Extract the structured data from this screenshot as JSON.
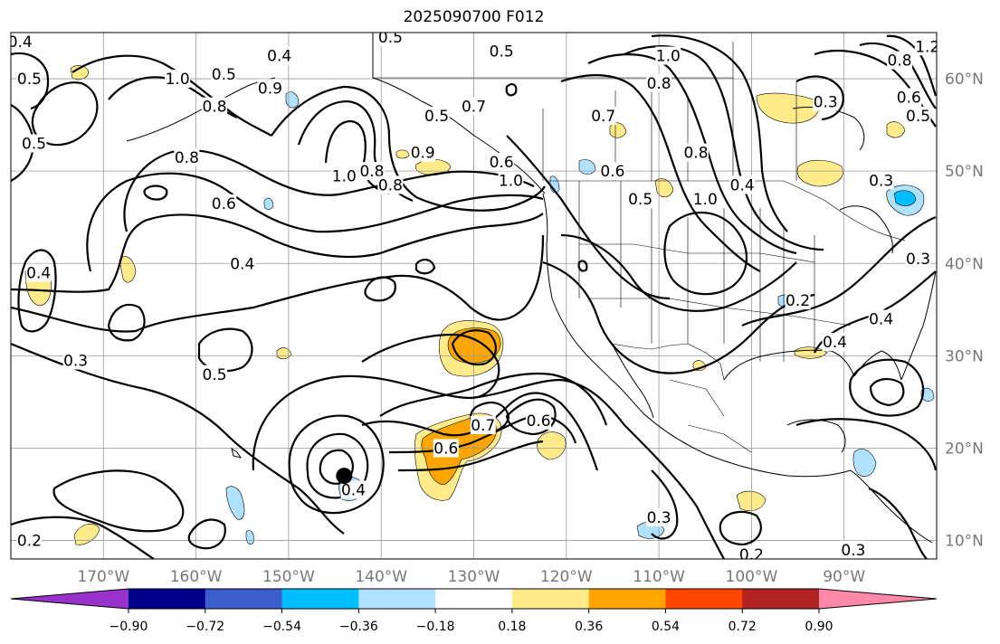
{
  "title": "2025090700 F012",
  "map": {
    "lon_range": [
      -180,
      -80
    ],
    "lat_range": [
      8,
      65
    ],
    "lon_ticks": [
      {
        "lon": -170,
        "label": "170°W"
      },
      {
        "lon": -160,
        "label": "160°W"
      },
      {
        "lon": -150,
        "label": "150°W"
      },
      {
        "lon": -140,
        "label": "140°W"
      },
      {
        "lon": -130,
        "label": "130°W"
      },
      {
        "lon": -120,
        "label": "120°W"
      },
      {
        "lon": -110,
        "label": "110°W"
      },
      {
        "lon": -100,
        "label": "100°W"
      },
      {
        "lon": -90,
        "label": "90°W"
      }
    ],
    "lat_ticks": [
      {
        "lat": 60,
        "label": "60°N"
      },
      {
        "lat": 50,
        "label": "50°N"
      },
      {
        "lat": 40,
        "label": "40°N"
      },
      {
        "lat": 30,
        "label": "30°N"
      },
      {
        "lat": 20,
        "label": "20°N"
      },
      {
        "lat": 10,
        "label": "10°N"
      }
    ],
    "grid": true,
    "contour_labels": [
      {
        "lon": -179,
        "lat": 64,
        "text": "0.4"
      },
      {
        "lon": -178,
        "lat": 60,
        "text": "0.5"
      },
      {
        "lon": -177.5,
        "lat": 53,
        "text": "0.5"
      },
      {
        "lon": -162,
        "lat": 60,
        "text": "1.0"
      },
      {
        "lon": -158,
        "lat": 57,
        "text": "0.8"
      },
      {
        "lon": -157,
        "lat": 60.5,
        "text": "0.5"
      },
      {
        "lon": -152,
        "lat": 59,
        "text": "0.9"
      },
      {
        "lon": -151,
        "lat": 62.5,
        "text": "0.4"
      },
      {
        "lon": -139,
        "lat": 64.5,
        "text": "0.5"
      },
      {
        "lon": -127,
        "lat": 63,
        "text": "0.5"
      },
      {
        "lon": -161,
        "lat": 51.5,
        "text": "0.8"
      },
      {
        "lon": -157,
        "lat": 46.5,
        "text": "0.6"
      },
      {
        "lon": -155,
        "lat": 40,
        "text": "0.4"
      },
      {
        "lon": -177,
        "lat": 39,
        "text": "0.4"
      },
      {
        "lon": -173,
        "lat": 29.5,
        "text": "0.3"
      },
      {
        "lon": -158,
        "lat": 28,
        "text": "0.5"
      },
      {
        "lon": -144,
        "lat": 49.5,
        "text": "1.0"
      },
      {
        "lon": -141,
        "lat": 50,
        "text": "0.8"
      },
      {
        "lon": -139,
        "lat": 48.5,
        "text": "0.8"
      },
      {
        "lon": -135.5,
        "lat": 52,
        "text": "0.9"
      },
      {
        "lon": -134,
        "lat": 56,
        "text": "0.5"
      },
      {
        "lon": -130,
        "lat": 57,
        "text": "0.7"
      },
      {
        "lon": -127,
        "lat": 51,
        "text": "0.6"
      },
      {
        "lon": -126,
        "lat": 49,
        "text": "1.0"
      },
      {
        "lon": -109,
        "lat": 62.5,
        "text": "1.0"
      },
      {
        "lon": -110,
        "lat": 59.5,
        "text": "0.8"
      },
      {
        "lon": -116,
        "lat": 56,
        "text": "0.7"
      },
      {
        "lon": -115,
        "lat": 50,
        "text": "0.6"
      },
      {
        "lon": -112,
        "lat": 47,
        "text": "0.5"
      },
      {
        "lon": -105,
        "lat": 47,
        "text": "1.0"
      },
      {
        "lon": -106,
        "lat": 52,
        "text": "0.8"
      },
      {
        "lon": -101,
        "lat": 48.5,
        "text": "0.4"
      },
      {
        "lon": -92,
        "lat": 57.5,
        "text": "0.3"
      },
      {
        "lon": -86,
        "lat": 49,
        "text": "0.3"
      },
      {
        "lon": -84,
        "lat": 62,
        "text": "0.8"
      },
      {
        "lon": -83,
        "lat": 58,
        "text": "0.6"
      },
      {
        "lon": -82,
        "lat": 56,
        "text": "0.5"
      },
      {
        "lon": -81,
        "lat": 63.5,
        "text": "1.2"
      },
      {
        "lon": -82,
        "lat": 40.5,
        "text": "0.3"
      },
      {
        "lon": -95,
        "lat": 36,
        "text": "0.2"
      },
      {
        "lon": -86,
        "lat": 34,
        "text": "0.4"
      },
      {
        "lon": -91,
        "lat": 31.5,
        "text": "0.4"
      },
      {
        "lon": -129,
        "lat": 22.5,
        "text": "0.7"
      },
      {
        "lon": -123,
        "lat": 23,
        "text": "0.6"
      },
      {
        "lon": -133,
        "lat": 20,
        "text": "0.6"
      },
      {
        "lon": -143,
        "lat": 15.5,
        "text": "0.4"
      },
      {
        "lon": -110,
        "lat": 12.5,
        "text": "0.3"
      },
      {
        "lon": -100,
        "lat": 8.5,
        "text": "0.2"
      },
      {
        "lon": -89,
        "lat": 9,
        "text": "0.3"
      },
      {
        "lon": -178,
        "lat": 10,
        "text": "0.2"
      }
    ]
  },
  "colorbar": {
    "colors": [
      "#9932cc",
      "#00008b",
      "#3a5fcd",
      "#00bfff",
      "#afe2ff",
      "#ffffff",
      "#ffeb8a",
      "#ffa500",
      "#ff4500",
      "#b22222",
      "#ff88aa"
    ],
    "tick_labels": [
      "−0.90",
      "−0.72",
      "−0.54",
      "−0.36",
      "−0.18",
      "0.18",
      "0.36",
      "0.54",
      "0.72",
      "0.90"
    ]
  },
  "markers": [
    {
      "name": "storm-center",
      "lon": -144,
      "lat": 17
    }
  ]
}
